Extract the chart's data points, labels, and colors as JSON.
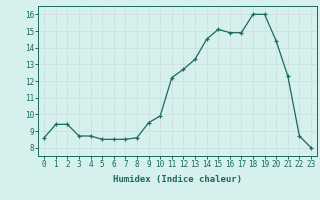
{
  "x": [
    0,
    1,
    2,
    3,
    4,
    5,
    6,
    7,
    8,
    9,
    10,
    11,
    12,
    13,
    14,
    15,
    16,
    17,
    18,
    19,
    20,
    21,
    22,
    23
  ],
  "y": [
    8.6,
    9.4,
    9.4,
    8.7,
    8.7,
    8.5,
    8.5,
    8.5,
    8.6,
    9.5,
    9.9,
    12.2,
    12.7,
    13.3,
    14.5,
    15.1,
    14.9,
    14.9,
    16.0,
    16.0,
    14.4,
    12.3,
    8.7,
    8.0
  ],
  "line_color": "#1a6b5a",
  "marker": "+",
  "bg_color": "#d6f0ee",
  "grid_color": "#c8dedd",
  "xlabel": "Humidex (Indice chaleur)",
  "xlim": [
    -0.5,
    23.5
  ],
  "ylim": [
    7.5,
    16.5
  ],
  "yticks": [
    8,
    9,
    10,
    11,
    12,
    13,
    14,
    15,
    16
  ],
  "xticks": [
    0,
    1,
    2,
    3,
    4,
    5,
    6,
    7,
    8,
    9,
    10,
    11,
    12,
    13,
    14,
    15,
    16,
    17,
    18,
    19,
    20,
    21,
    22,
    23
  ],
  "tick_label_color": "#1a6b5a",
  "label_fontsize": 6.5,
  "tick_fontsize": 5.5
}
